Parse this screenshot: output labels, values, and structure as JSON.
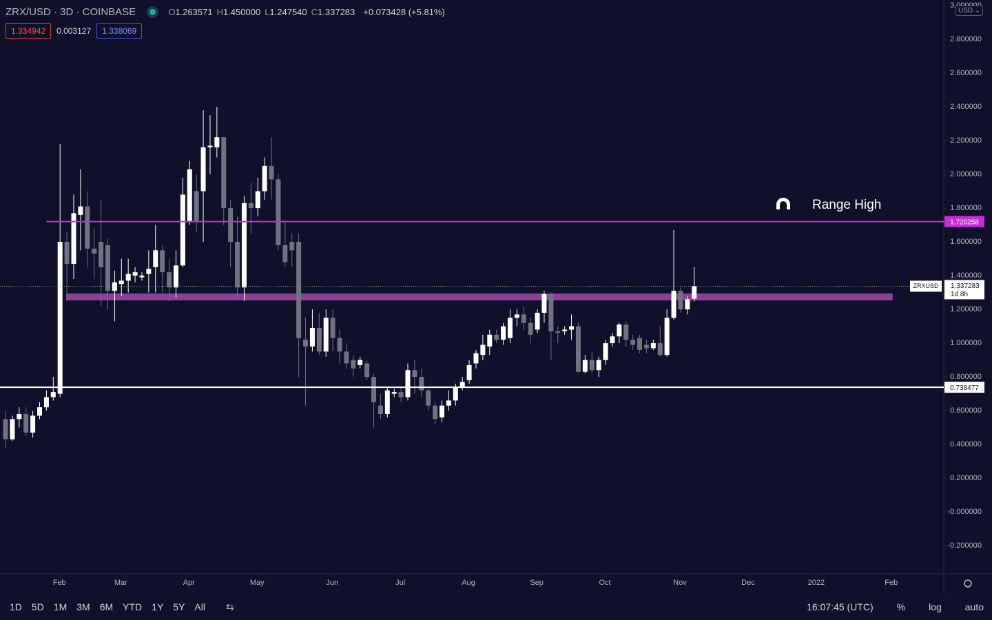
{
  "header": {
    "symbol": "ZRX/USD · 3D · COINBASE",
    "ohlc": [
      {
        "key": "O",
        "value": "1.263571"
      },
      {
        "key": "H",
        "value": "1.450000"
      },
      {
        "key": "L",
        "value": "1.247540"
      },
      {
        "key": "C",
        "value": "1.337283"
      }
    ],
    "change": "+0.073428 (+5.81%)",
    "boxes": [
      "1.334942",
      "0.003127",
      "1.338069"
    ],
    "currency": "USD"
  },
  "chart_data": {
    "type": "candlestick",
    "up_color": "#ffffff",
    "down_color": "#6f7280",
    "xlim": [
      -0.81,
      137.6
    ],
    "xticks": [
      {
        "value": 7.9,
        "label": "Feb"
      },
      {
        "value": 16.9,
        "label": "Mar"
      },
      {
        "value": 26.9,
        "label": "Apr"
      },
      {
        "value": 36.9,
        "label": "May"
      },
      {
        "value": 47.9,
        "label": "Jun"
      },
      {
        "value": 57.9,
        "label": "Jul"
      },
      {
        "value": 67.9,
        "label": "Aug"
      },
      {
        "value": 77.9,
        "label": "Sep"
      },
      {
        "value": 87.9,
        "label": "Oct"
      },
      {
        "value": 98.9,
        "label": "Nov"
      },
      {
        "value": 108.9,
        "label": "Dec"
      },
      {
        "value": 118.9,
        "label": "2022"
      },
      {
        "value": 129.9,
        "label": "Feb"
      }
    ],
    "ylim": [
      -0.367,
      3.033
    ],
    "yticks": [
      {
        "value": -0.2,
        "label": "-0.200000"
      },
      {
        "value": 0,
        "label": "-0.000000"
      },
      {
        "value": 0.2,
        "label": "0.200000"
      },
      {
        "value": 0.4,
        "label": "0.400000"
      },
      {
        "value": 0.6,
        "label": "0.600000"
      },
      {
        "value": 0.8,
        "label": "0.800000"
      },
      {
        "value": 1.0,
        "label": "1.000000"
      },
      {
        "value": 1.2,
        "label": "1.200000"
      },
      {
        "value": 1.4,
        "label": "1.400000"
      },
      {
        "value": 1.6,
        "label": "1.600000"
      },
      {
        "value": 1.8,
        "label": "1.800000"
      },
      {
        "value": 2.0,
        "label": "2.000000"
      },
      {
        "value": 2.2,
        "label": "2.200000"
      },
      {
        "value": 2.4,
        "label": "2.400000"
      },
      {
        "value": 2.6,
        "label": "2.600000"
      },
      {
        "value": 2.8,
        "label": "2.800000"
      },
      {
        "value": 3.0,
        "label": "3.000000"
      }
    ],
    "open": [
      0.55,
      0.43,
      0.55,
      0.58,
      0.47,
      0.57,
      0.62,
      0.68,
      0.7,
      1.6,
      1.47,
      1.76,
      1.81,
      1.56,
      1.6,
      1.58,
      1.31,
      1.35,
      1.37,
      1.4,
      1.39,
      1.41,
      1.45,
      1.55,
      1.42,
      1.33,
      1.46,
      1.72,
      1.9,
      1.9,
      2.16,
      2.16,
      2.22,
      1.8,
      1.6,
      1.33,
      1.83,
      1.8,
      1.9,
      2.05,
      1.97,
      1.58,
      1.6,
      1.6,
      1.02,
      0.98,
      1.09,
      0.95,
      1.15,
      1.03,
      0.95,
      0.9,
      0.87,
      0.88,
      0.8,
      0.63,
      0.58,
      0.7,
      0.71,
      0.68,
      0.84,
      0.8,
      0.72,
      0.63,
      0.56,
      0.63,
      0.66,
      0.74,
      0.78,
      0.88,
      0.93,
      0.98,
      1.05,
      1.02,
      1.03,
      1.15,
      1.17,
      1.12,
      1.08,
      1.18,
      1.29,
      1.07,
      1.07,
      1.08,
      1.1,
      0.83,
      0.9,
      0.84,
      0.9,
      1.0,
      1.04,
      1.11,
      1.02,
      1.03,
      0.99,
      0.97,
      1.0,
      0.93,
      1.15,
      1.31,
      1.2,
      1.263571
    ],
    "high": [
      0.6,
      0.57,
      0.62,
      0.62,
      0.6,
      0.65,
      0.72,
      0.8,
      2.18,
      1.66,
      1.88,
      2.03,
      1.9,
      1.68,
      1.85,
      1.62,
      1.43,
      1.5,
      1.5,
      1.45,
      1.42,
      1.55,
      1.7,
      1.58,
      1.5,
      1.55,
      1.98,
      2.08,
      2.0,
      2.38,
      2.35,
      2.4,
      2.22,
      1.85,
      1.75,
      1.87,
      1.95,
      1.98,
      2.1,
      2.22,
      2.0,
      1.72,
      1.65,
      1.65,
      1.15,
      1.2,
      1.18,
      1.2,
      1.2,
      1.08,
      1.0,
      0.93,
      0.92,
      0.9,
      0.82,
      0.7,
      0.74,
      0.73,
      0.74,
      0.88,
      0.9,
      0.85,
      0.73,
      0.65,
      0.66,
      0.72,
      0.76,
      0.8,
      0.9,
      0.96,
      1.05,
      1.08,
      1.08,
      1.12,
      1.2,
      1.2,
      1.22,
      1.15,
      1.2,
      1.31,
      1.3,
      1.1,
      1.1,
      1.17,
      1.12,
      0.93,
      0.95,
      0.92,
      1.02,
      1.06,
      1.12,
      1.13,
      1.05,
      1.05,
      1.02,
      1.02,
      1.1,
      1.2,
      1.67,
      1.33,
      1.28,
      1.45
    ],
    "low": [
      0.38,
      0.42,
      0.5,
      0.45,
      0.44,
      0.55,
      0.6,
      0.66,
      0.68,
      1.25,
      1.38,
      1.55,
      1.45,
      1.38,
      1.22,
      1.2,
      1.13,
      1.28,
      1.3,
      1.36,
      1.37,
      1.3,
      1.3,
      1.3,
      1.25,
      1.27,
      1.45,
      1.7,
      1.66,
      1.6,
      2.0,
      2.1,
      1.7,
      1.45,
      1.26,
      1.25,
      1.65,
      1.75,
      1.85,
      1.85,
      1.55,
      1.45,
      1.45,
      0.8,
      0.63,
      0.95,
      0.93,
      0.92,
      0.95,
      0.88,
      0.85,
      0.8,
      0.85,
      0.78,
      0.5,
      0.55,
      0.56,
      0.68,
      0.65,
      0.66,
      0.7,
      0.68,
      0.6,
      0.52,
      0.53,
      0.6,
      0.63,
      0.72,
      0.76,
      0.85,
      0.9,
      0.93,
      1.0,
      0.99,
      1.0,
      1.1,
      1.08,
      1.0,
      1.06,
      1.12,
      0.9,
      1.0,
      1.05,
      1.02,
      0.82,
      0.82,
      0.82,
      0.8,
      0.87,
      0.98,
      1.0,
      0.98,
      0.96,
      0.94,
      0.94,
      0.96,
      0.92,
      0.92,
      1.14,
      1.18,
      1.17,
      1.24754
    ],
    "close": [
      0.43,
      0.55,
      0.58,
      0.47,
      0.57,
      0.62,
      0.68,
      0.71,
      1.6,
      1.47,
      1.77,
      1.81,
      1.56,
      1.53,
      1.45,
      1.31,
      1.36,
      1.37,
      1.41,
      1.42,
      1.4,
      1.44,
      1.55,
      1.42,
      1.33,
      1.46,
      1.88,
      2.03,
      1.72,
      2.16,
      2.17,
      2.22,
      1.8,
      1.6,
      1.33,
      1.83,
      1.8,
      1.9,
      2.05,
      1.97,
      1.58,
      1.48,
      1.55,
      1.03,
      0.98,
      1.09,
      0.95,
      1.15,
      1.03,
      0.95,
      0.88,
      0.85,
      0.9,
      0.8,
      0.65,
      0.58,
      0.72,
      0.71,
      0.68,
      0.84,
      0.8,
      0.72,
      0.63,
      0.55,
      0.63,
      0.66,
      0.74,
      0.77,
      0.87,
      0.94,
      0.99,
      1.05,
      1.02,
      1.1,
      1.15,
      1.17,
      1.12,
      1.05,
      1.18,
      1.29,
      1.07,
      1.06,
      1.08,
      1.1,
      0.83,
      0.9,
      0.84,
      0.9,
      1.0,
      1.04,
      1.11,
      1.02,
      0.99,
      0.96,
      0.97,
      1.0,
      0.93,
      1.15,
      1.31,
      1.2,
      1.26,
      1.337283
    ],
    "zones": [
      {
        "low": 1.253,
        "high": 1.294,
        "x": [
          8.9,
          130.1
        ],
        "color": "#a04aa6"
      }
    ],
    "hlines": [
      {
        "value": 1.720258,
        "color": "#c42ed6",
        "x_start": 6.0
      },
      {
        "value": 0.738477,
        "color": "#ffffff"
      }
    ],
    "last": {
      "value": 1.337283,
      "symbol": "ZRXUSD",
      "countdown": "1d 8h"
    },
    "annotation": "Range High"
  },
  "toolbar": {
    "ranges": [
      "1D",
      "5D",
      "1M",
      "3M",
      "6M",
      "YTD",
      "1Y",
      "5Y",
      "All"
    ],
    "time": "16:07:45 (UTC)",
    "options": [
      "%",
      "log",
      "auto"
    ]
  }
}
